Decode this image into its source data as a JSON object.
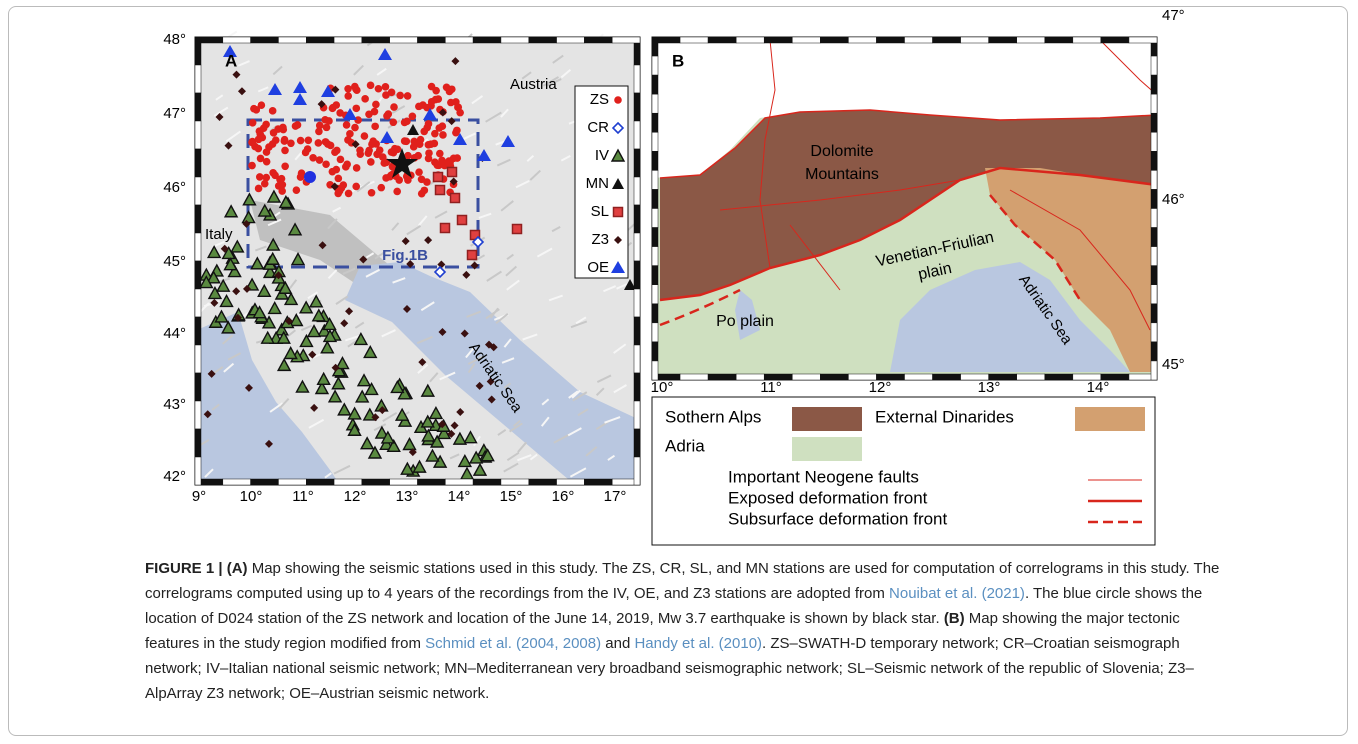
{
  "panel_a": {
    "label": "A",
    "y_ticks": [
      "48°",
      "47°",
      "46°",
      "45°",
      "44°",
      "43°",
      "42°"
    ],
    "x_ticks": [
      "9°",
      "10°",
      "11°",
      "12°",
      "13°",
      "14°",
      "15°",
      "16°",
      "17°"
    ],
    "places": {
      "austria": "Austria",
      "italy": "Italy",
      "sea": "Adriatic Sea"
    },
    "box_label": "Fig.1B",
    "legend": [
      "ZS",
      "CR",
      "IV",
      "MN",
      "SL",
      "Z3",
      "OE"
    ]
  },
  "panel_b": {
    "label": "B",
    "y_ticks": [
      "47°",
      "46°",
      "45°"
    ],
    "x_ticks": [
      "10°",
      "11°",
      "12°",
      "13°",
      "14°"
    ],
    "dolomites": [
      "Dolomite",
      "Mountains"
    ],
    "plain": [
      "Venetian-Friulian",
      "plain"
    ],
    "po": "Po plain",
    "sea": "Adriatic Sea",
    "legend": {
      "alps": "Sothern Alps",
      "dinarides": "External Dinarides",
      "adria": "Adria",
      "faults": "Important Neogene faults",
      "exposed": "Exposed deformation front",
      "subsurface": "Subsurface deformation front"
    }
  },
  "caption": {
    "label": "FIGURE 1 | (A)",
    "text1": " Map showing the seismic stations used in this study. The ZS, CR, SL, and MN stations are used for computation of correlograms in this study. The correlograms computed using up to 4 years of the recordings from the IV, OE, and Z3 stations are adopted from ",
    "link1": "Nouibat et al. (2021)",
    "text2": ". The blue circle shows the location of D024 station of the ZS network and location of the June 14, 2019, Mw 3.7 earthquake is shown by black star. ",
    "label_b": "(B)",
    "text3": " Map showing the major tectonic features in the study region modified from ",
    "link2": "Schmid et al. (2004, 2008)",
    "text4": " and ",
    "link3": "Handy et al. (2010)",
    "text5": ". ZS–SWATH-D temporary network; CR–Croatian seismograph network; IV–Italian national seismic network; MN–Mediterranean very broadband seismographic network; SL–Seismic network of the republic of Slovenia; Z3–AlpArray Z3 network; OE–Austrian seismic network."
  }
}
